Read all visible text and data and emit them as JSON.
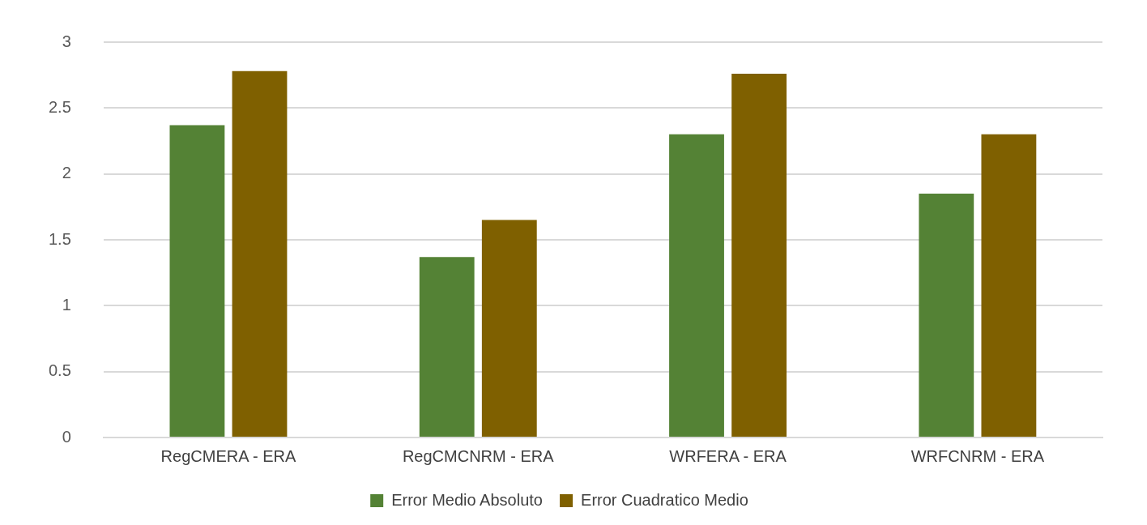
{
  "chart_data": {
    "type": "bar",
    "categories": [
      "RegCMERA - ERA",
      "RegCMCNRM - ERA",
      "WRFERA - ERA",
      "WRFCNRM - ERA"
    ],
    "series": [
      {
        "name": "Error Medio Absoluto",
        "color": "#548235",
        "values": [
          2.37,
          1.37,
          2.3,
          1.85
        ]
      },
      {
        "name": "Error Cuadratico Medio",
        "color": "#7f6000",
        "values": [
          2.78,
          1.65,
          2.76,
          2.3
        ]
      }
    ],
    "ylim": [
      0,
      3
    ],
    "yticks": [
      0,
      0.5,
      1,
      1.5,
      2,
      2.5,
      3
    ],
    "grid": "y",
    "legend": "bottom"
  }
}
